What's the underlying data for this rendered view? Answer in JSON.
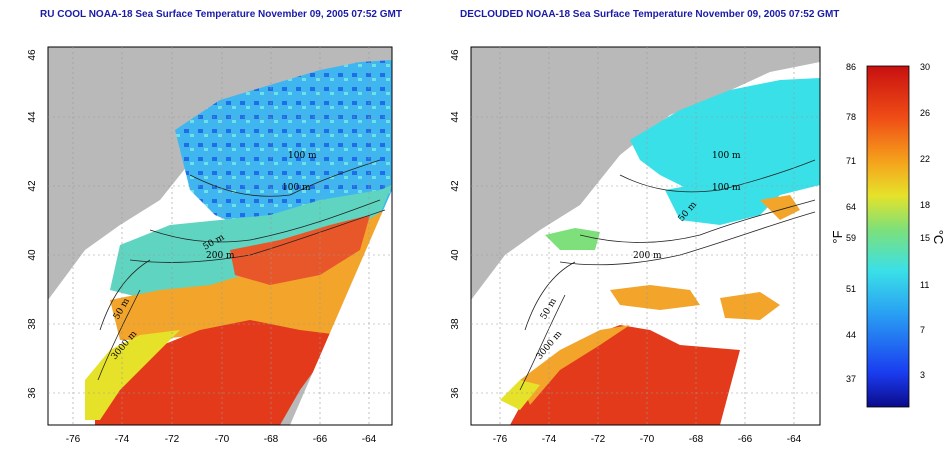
{
  "panels": [
    {
      "title": "RU COOL NOAA-18 Sea Surface Temperature November 09, 2005 07:52 GMT",
      "contour_labels": [
        "100 m",
        "100 m",
        "50 m",
        "200 m",
        "50 m",
        "3000 m"
      ]
    },
    {
      "title": "DECLOUDED NOAA-18 Sea Surface Temperature November 09, 2005 07:52 GMT",
      "contour_labels": [
        "100 m",
        "100 m",
        "50 m",
        "200 m",
        "50 m",
        "3000 m"
      ]
    }
  ],
  "axes": {
    "lat_ticks": [
      "46",
      "44",
      "42",
      "40",
      "38",
      "36"
    ],
    "lon_ticks": [
      "-76",
      "-74",
      "-72",
      "-70",
      "-68",
      "-66",
      "-64"
    ]
  },
  "colorbar": {
    "fahrenheit_unit": "°F",
    "celsius_unit": "°C",
    "fahrenheit_ticks": [
      "86",
      "78",
      "71",
      "64",
      "59",
      "51",
      "44",
      "37"
    ],
    "celsius_ticks": [
      "30",
      "26",
      "22",
      "18",
      "15",
      "11",
      "7",
      "3"
    ],
    "range_celsius": [
      0,
      30
    ],
    "colors": [
      "#0b0b8a",
      "#1a3cf0",
      "#2aa3f2",
      "#3ae0e8",
      "#7de07a",
      "#e6e22a",
      "#f5a21c",
      "#ef4c16",
      "#c81010"
    ]
  },
  "colors": {
    "land": "#b9b9b9",
    "cloud": "#ffffff",
    "warm_water": "#e23a1a",
    "title": "#1a1aa8"
  }
}
